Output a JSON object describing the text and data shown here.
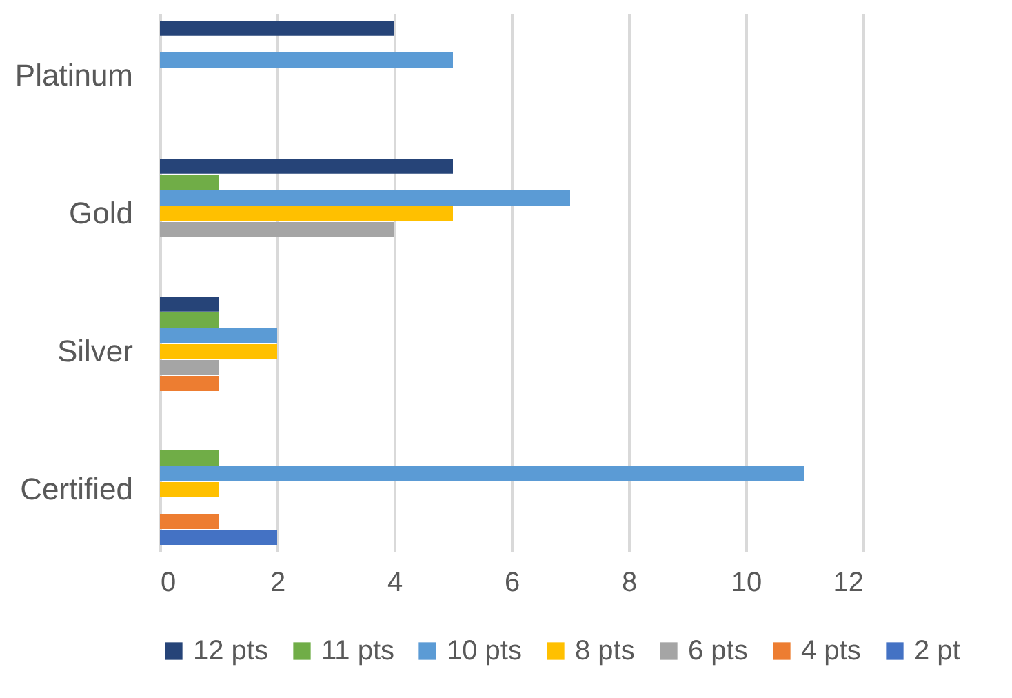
{
  "chart_data": {
    "type": "bar",
    "orientation": "horizontal",
    "categories": [
      "Platinum",
      "Gold",
      "Silver",
      "Certified"
    ],
    "series": [
      {
        "name": "12 pts",
        "color": "#264478",
        "values": [
          4,
          5,
          1,
          null
        ]
      },
      {
        "name": "11 pts",
        "color": "#70ad47",
        "values": [
          null,
          1,
          1,
          1
        ]
      },
      {
        "name": "10 pts",
        "color": "#5b9bd5",
        "values": [
          5,
          7,
          2,
          11
        ]
      },
      {
        "name": "8 pts",
        "color": "#ffc000",
        "values": [
          null,
          5,
          2,
          1
        ]
      },
      {
        "name": "6 pts",
        "color": "#a5a5a5",
        "values": [
          null,
          4,
          1,
          null
        ]
      },
      {
        "name": "4 pts",
        "color": "#ed7d31",
        "values": [
          null,
          null,
          1,
          1
        ]
      },
      {
        "name": "2 pt",
        "color": "#4472c4",
        "values": [
          null,
          null,
          null,
          2
        ]
      }
    ],
    "xlim": [
      0,
      12
    ],
    "xticks": [
      0,
      2,
      4,
      6,
      8,
      10,
      12
    ],
    "grid": "x",
    "legend": "bottom"
  }
}
